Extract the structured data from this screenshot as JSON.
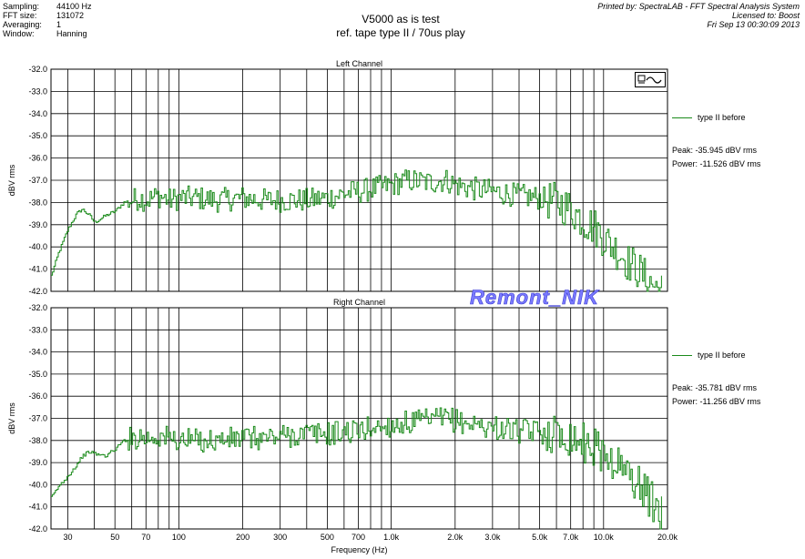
{
  "header": {
    "labels": [
      "Sampling:",
      "FFT size:",
      "Averaging:",
      "Window:"
    ],
    "values": [
      "44100 Hz",
      "131072",
      "1",
      "Hanning"
    ],
    "title_line1": "V5000  as is test",
    "title_line2": "ref. tape type II / 70us play",
    "printed_by": "Printed by: SpectraLAB - FFT Spectral Analysis System",
    "licensed_to": "Licensed to: Boost",
    "date": "Fri Sep 13 00:30:09 2013"
  },
  "watermark": "Remont_NIK",
  "icon": "printer-wave-icon",
  "colors": {
    "trace": "#1a8a1a",
    "grid": "#000000",
    "watermark": "#7b7bff"
  },
  "panels": {
    "left": {
      "legend": "type II before",
      "peak": "Peak: -35.945 dBV rms",
      "power": "Power: -11.526 dBV rms"
    },
    "right": {
      "legend": "type II before",
      "peak": "Peak: -35.781 dBV rms",
      "power": "Power: -11.256 dBV rms"
    }
  },
  "chart_data": [
    {
      "type": "line",
      "title": "Left Channel",
      "xlabel": "",
      "ylabel": "dBV rms",
      "xscale": "log",
      "xlim": [
        25,
        20000
      ],
      "ylim": [
        -42.0,
        -32.0
      ],
      "yticks": [
        "-32.0",
        "-33.0",
        "-34.0",
        "-35.0",
        "-36.0",
        "-37.0",
        "-38.0",
        "-39.0",
        "-40.0",
        "-41.0",
        "-42.0"
      ],
      "grid": true,
      "legend_position": "right",
      "series": [
        {
          "name": "type II before",
          "x": [
            25,
            27,
            30,
            33,
            35,
            38,
            40,
            45,
            50,
            55,
            60,
            65,
            70,
            80,
            90,
            100,
            120,
            150,
            200,
            250,
            300,
            400,
            500,
            600,
            700,
            800,
            900,
            1000,
            1200,
            1500,
            1800,
            2000,
            2200,
            2500,
            3000,
            3500,
            4000,
            5000,
            6000,
            7000,
            8000,
            9000,
            10000,
            11000,
            12000,
            13000,
            14000,
            15000,
            16000,
            17000,
            18000,
            19000
          ],
          "y": [
            -41.3,
            -40.3,
            -39.2,
            -38.5,
            -38.3,
            -38.6,
            -38.9,
            -38.6,
            -38.4,
            -38.0,
            -37.9,
            -37.8,
            -37.9,
            -37.7,
            -37.9,
            -37.8,
            -37.8,
            -37.9,
            -37.8,
            -37.9,
            -37.9,
            -37.9,
            -37.8,
            -37.6,
            -37.5,
            -37.4,
            -37.3,
            -37.2,
            -37.0,
            -37.1,
            -37.0,
            -37.2,
            -37.3,
            -37.4,
            -37.5,
            -37.6,
            -37.7,
            -37.8,
            -38.0,
            -38.3,
            -38.8,
            -39.1,
            -39.6,
            -40.0,
            -40.3,
            -40.7,
            -40.9,
            -41.2,
            -41.5,
            -41.7,
            -41.9,
            -42.0
          ]
        }
      ]
    },
    {
      "type": "line",
      "title": "Right Channel",
      "xlabel": "Frequency (Hz)",
      "ylabel": "dBV rms",
      "xscale": "log",
      "xlim": [
        25,
        20000
      ],
      "ylim": [
        -42.0,
        -32.0
      ],
      "yticks": [
        "-32.0",
        "-33.0",
        "-34.0",
        "-35.0",
        "-36.0",
        "-37.0",
        "-38.0",
        "-39.0",
        "-40.0",
        "-41.0",
        "-42.0"
      ],
      "xticks": [
        {
          "label": "30",
          "v": 30
        },
        {
          "label": "50",
          "v": 50
        },
        {
          "label": "70",
          "v": 70
        },
        {
          "label": "100",
          "v": 100
        },
        {
          "label": "200",
          "v": 200
        },
        {
          "label": "300",
          "v": 300
        },
        {
          "label": "500",
          "v": 500
        },
        {
          "label": "700",
          "v": 700
        },
        {
          "label": "1.0k",
          "v": 1000
        },
        {
          "label": "2.0k",
          "v": 2000
        },
        {
          "label": "3.0k",
          "v": 3000
        },
        {
          "label": "5.0k",
          "v": 5000
        },
        {
          "label": "7.0k",
          "v": 7000
        },
        {
          "label": "10.0k",
          "v": 10000
        },
        {
          "label": "20.0k",
          "v": 20000
        }
      ],
      "grid": true,
      "legend_position": "right",
      "series": [
        {
          "name": "type II before",
          "x": [
            25,
            27,
            30,
            33,
            35,
            38,
            40,
            45,
            50,
            55,
            60,
            65,
            70,
            80,
            90,
            100,
            120,
            150,
            200,
            250,
            300,
            400,
            500,
            600,
            700,
            800,
            900,
            1000,
            1200,
            1500,
            1800,
            2000,
            2200,
            2500,
            3000,
            3500,
            4000,
            5000,
            6000,
            7000,
            8000,
            9000,
            10000,
            11000,
            12000,
            13000,
            14000,
            15000,
            16000,
            17000,
            18000,
            19000
          ],
          "y": [
            -40.6,
            -40.1,
            -39.6,
            -39.1,
            -38.7,
            -38.5,
            -38.6,
            -38.7,
            -38.4,
            -38.0,
            -37.9,
            -37.8,
            -37.9,
            -37.8,
            -37.9,
            -38.0,
            -38.0,
            -38.0,
            -37.9,
            -37.9,
            -37.8,
            -37.7,
            -37.7,
            -37.6,
            -37.6,
            -37.4,
            -37.4,
            -37.3,
            -37.2,
            -37.1,
            -37.0,
            -37.1,
            -37.2,
            -37.3,
            -37.4,
            -37.5,
            -37.6,
            -37.6,
            -37.7,
            -37.8,
            -38.1,
            -38.3,
            -38.6,
            -38.9,
            -39.2,
            -39.5,
            -39.8,
            -40.1,
            -40.5,
            -40.8,
            -41.2,
            -41.5
          ]
        }
      ]
    }
  ]
}
